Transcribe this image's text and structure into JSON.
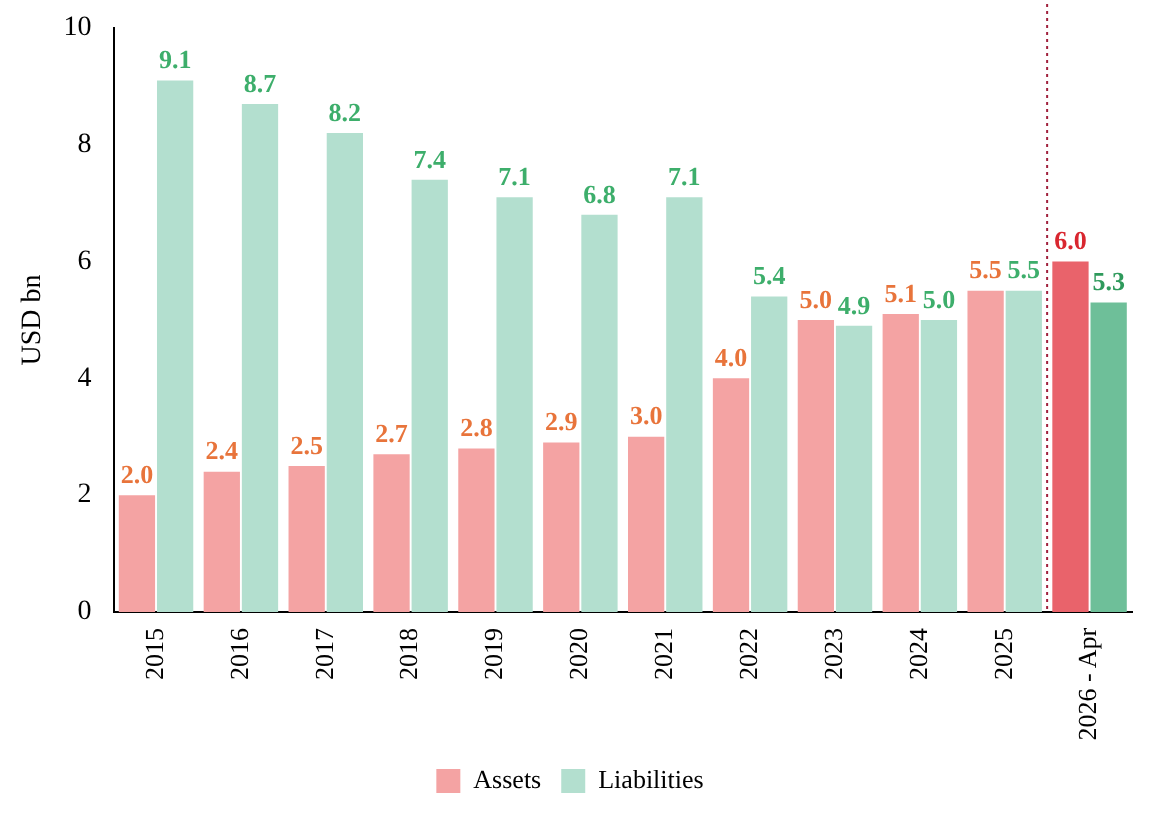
{
  "chart_data": {
    "type": "bar",
    "ylabel": "USD bn",
    "categories": [
      "2015",
      "2016",
      "2017",
      "2018",
      "2019",
      "2020",
      "2021",
      "2022",
      "2023",
      "2024",
      "2025",
      "2026 - Apr"
    ],
    "series": [
      {
        "name": "Assets",
        "color": "#f4a3a3",
        "colors": [
          "#f4a3a3",
          "#f4a3a3",
          "#f4a3a3",
          "#f4a3a3",
          "#f4a3a3",
          "#f4a3a3",
          "#f4a3a3",
          "#f4a3a3",
          "#f4a3a3",
          "#f4a3a3",
          "#f4a3a3",
          "#e9636b"
        ],
        "values": [
          2.0,
          2.4,
          2.5,
          2.7,
          2.8,
          2.9,
          3.0,
          4.0,
          5.0,
          5.1,
          5.5,
          6.0
        ],
        "value_labels": [
          "2.0",
          "2.4",
          "2.5",
          "2.7",
          "2.8",
          "2.9",
          "3.0",
          "4.0",
          "5.0",
          "5.1",
          "5.5",
          "6.0"
        ]
      },
      {
        "name": "Liabilities",
        "color": "#b3dfcf",
        "colors": [
          "#b3dfcf",
          "#b3dfcf",
          "#b3dfcf",
          "#b3dfcf",
          "#b3dfcf",
          "#b3dfcf",
          "#b3dfcf",
          "#b3dfcf",
          "#b3dfcf",
          "#b3dfcf",
          "#b3dfcf",
          "#6ebf99"
        ],
        "values": [
          9.1,
          8.7,
          8.2,
          7.4,
          7.1,
          6.8,
          7.1,
          5.4,
          4.9,
          5.0,
          5.5,
          5.3
        ],
        "value_labels": [
          "9.1",
          "8.7",
          "8.2",
          "7.4",
          "7.1",
          "6.8",
          "7.1",
          "5.4",
          "4.9",
          "5.0",
          "5.5",
          "5.3"
        ]
      }
    ],
    "ylim": [
      0,
      10
    ],
    "yticks": [
      0,
      2,
      4,
      6,
      8,
      10
    ],
    "grid": false,
    "legend": "bottom",
    "ref_lines": [
      {
        "axis": "x",
        "value": "2026 - Apr",
        "color": "#a0203c",
        "line_style": "dotted"
      }
    ]
  }
}
